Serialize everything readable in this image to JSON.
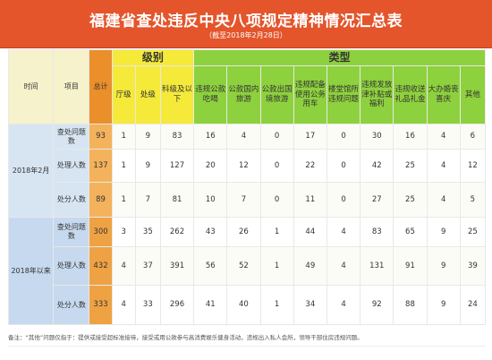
{
  "header": {
    "title": "福建省查处违反中央八项规定精神情况汇总表",
    "subtitle": "（截至2018年2月28日）"
  },
  "columns": {
    "time": "时间",
    "item": "项目",
    "total": "总计",
    "level_group": "级别",
    "type_group": "类型",
    "levels": [
      "厅级",
      "处级",
      "科级及以下"
    ],
    "types": [
      "违规公款吃喝",
      "公款国内旅游",
      "公款出国境旅游",
      "违规配备使用公务用车",
      "楼堂馆所违规问题",
      "违规发放津补贴或福利",
      "违规收送礼品礼金",
      "大办婚丧喜庆",
      "其他"
    ]
  },
  "sections": [
    {
      "period": "2018年2月",
      "rows": [
        {
          "item": "查处问题数",
          "values": [
            "93",
            "1",
            "9",
            "83",
            "16",
            "4",
            "0",
            "17",
            "0",
            "30",
            "16",
            "4",
            "6"
          ]
        },
        {
          "item": "处理人数",
          "values": [
            "137",
            "1",
            "9",
            "127",
            "20",
            "12",
            "0",
            "22",
            "0",
            "42",
            "25",
            "4",
            "12"
          ]
        },
        {
          "item": "处分人数",
          "values": [
            "89",
            "1",
            "7",
            "81",
            "10",
            "7",
            "0",
            "11",
            "0",
            "27",
            "25",
            "4",
            "5"
          ]
        }
      ]
    },
    {
      "period": "2018年以来",
      "rows": [
        {
          "item": "查处问题数",
          "values": [
            "300",
            "3",
            "35",
            "262",
            "43",
            "26",
            "1",
            "44",
            "4",
            "83",
            "65",
            "9",
            "25"
          ]
        },
        {
          "item": "处理人数",
          "values": [
            "432",
            "4",
            "37",
            "391",
            "56",
            "52",
            "1",
            "49",
            "4",
            "131",
            "91",
            "9",
            "39"
          ]
        },
        {
          "item": "处分人数",
          "values": [
            "333",
            "4",
            "33",
            "296",
            "41",
            "40",
            "1",
            "34",
            "4",
            "92",
            "88",
            "9",
            "24"
          ]
        }
      ]
    }
  ],
  "footnote": "备注：“其他”问题仅指于：提供或接受超标准接待，接受或用公款参与高消费娱乐健身活动，违规出入私人会所，领导干部住房违规问题。"
}
